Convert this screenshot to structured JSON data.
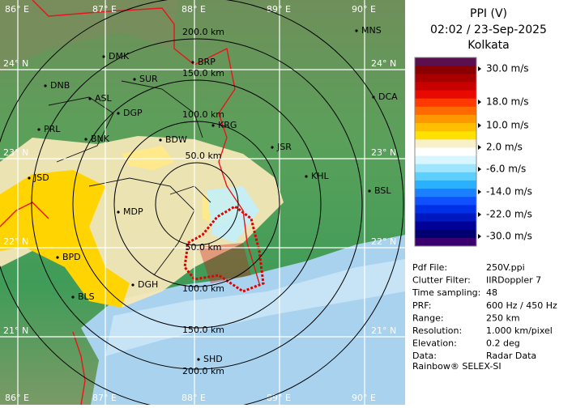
{
  "map": {
    "lat_labels": [
      "24° N",
      "23° N",
      "22° N",
      "21° N"
    ],
    "lon_labels": [
      "86° E",
      "87° E",
      "88° E",
      "89° E",
      "90° E"
    ],
    "range_labels": [
      "50.0 km",
      "100.0 km",
      "150.0 km",
      "200.0 km"
    ],
    "stations": [
      "MNS",
      "DMK",
      "BRP",
      "DNB",
      "SUR",
      "ASL",
      "DGP",
      "KRG",
      "DCA",
      "PRL",
      "BNK",
      "BDW",
      "JSR",
      "KHL",
      "JSD",
      "BSL",
      "MDP",
      "BPD",
      "DGH",
      "BLS",
      "SHD"
    ]
  },
  "panel": {
    "title": "PPI (V)",
    "time": "02:02 / 23-Sep-2025",
    "site": "Kolkata",
    "scale_labels": [
      "30.0 m/s",
      "18.0 m/s",
      "10.0 m/s",
      "2.0 m/s",
      "-6.0 m/s",
      "-14.0 m/s",
      "-22.0 m/s",
      "-30.0 m/s"
    ],
    "scale_colors": [
      "#5c0f4f",
      "#8a0000",
      "#a80000",
      "#c80000",
      "#e80a00",
      "#ff3a00",
      "#ff6a00",
      "#ff9800",
      "#ffbf00",
      "#ffe000",
      "#f7f0c8",
      "#ffffff",
      "#d8f6ff",
      "#9ee6ff",
      "#5ccfff",
      "#2ab0ff",
      "#1a80ff",
      "#0f50ff",
      "#0030e6",
      "#0018c0",
      "#000098",
      "#000070",
      "#3a006e"
    ],
    "info": [
      [
        "Pdf File:",
        "250V.ppi"
      ],
      [
        "Clutter Filter:",
        "IIRDoppler 7"
      ],
      [
        "Time sampling:",
        "48"
      ],
      [
        "PRF:",
        "600 Hz / 450 Hz"
      ],
      [
        "Range:",
        "250 km"
      ],
      [
        "Resolution:",
        "1.000 km/pixel"
      ],
      [
        "Elevation:",
        "0.2 deg"
      ],
      [
        "Data:",
        "Radar Data"
      ]
    ],
    "footer": "Rainbow® SELEX-SI"
  }
}
